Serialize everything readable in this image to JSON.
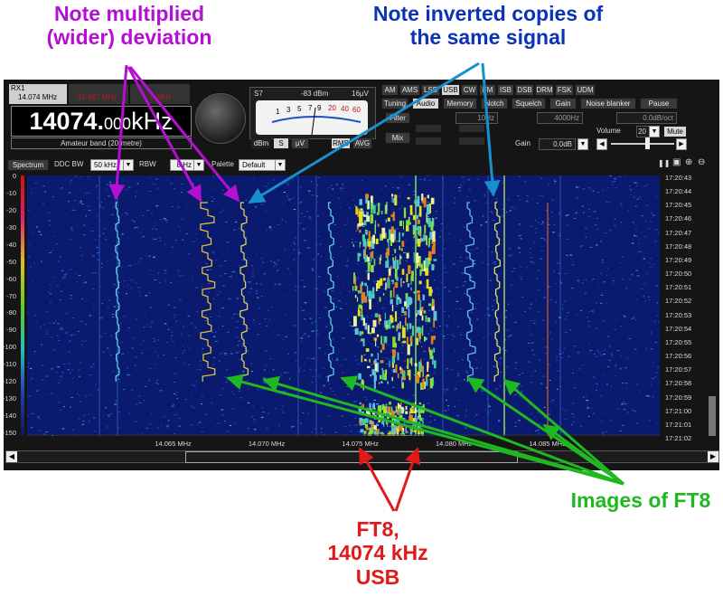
{
  "annotations": {
    "multiplied": [
      "Note multiplied",
      "(wider) deviation"
    ],
    "inverted": [
      "Note inverted copies of",
      "the same signal"
    ],
    "ft8": [
      "FT8,",
      "14074 kHz",
      "USB"
    ],
    "images": "Images of FT8",
    "colors": {
      "purple": "#b40fd2",
      "blue": "#0b33b8",
      "red": "#e01a1a",
      "green": "#20b820"
    }
  },
  "receiver": {
    "rx_tab": "RX1",
    "rx_freq_small": "14.074 MHz",
    "rx2_freq": "15.887 MHz",
    "rx3_freq": "...0 MHz",
    "frequency_main": "14074.",
    "frequency_fine": "000",
    "frequency_unit": "kHz",
    "band": "Amateur band (20-metre)"
  },
  "smeter": {
    "s_label": "S7",
    "dbm": "-83 dBm",
    "uv": "16μV",
    "scale": [
      "1",
      "3",
      "5",
      "7",
      "9",
      "20",
      "40",
      "60"
    ],
    "unit_buttons": [
      "dBm",
      "S",
      "μV"
    ],
    "mode_buttons": [
      "RMS",
      "AVG"
    ]
  },
  "modes": [
    "AM",
    "AMS",
    "LSB",
    "USB",
    "CW",
    "FM",
    "ISB",
    "DSB",
    "DRM",
    "FSK",
    "UDM"
  ],
  "active_mode": "USB",
  "tabs": [
    "Tuning",
    "Audio",
    "Memory",
    "Notch",
    "Squelch",
    "Gain",
    "Noise blanker",
    "Pause"
  ],
  "active_tab": "Audio",
  "audio": {
    "filter_label": "Filter",
    "mix_label": "Mix",
    "f1": "10Hz",
    "f2": "4000Hz",
    "f3": "0.0dB/oct",
    "volume_label": "Volume",
    "volume_value": "20",
    "mute": "Mute",
    "gain_label": "Gain",
    "gain_value": "0.0dB"
  },
  "spectrum_bar": {
    "spectrum_button": "Spectrum",
    "ddc_label": "DDC BW",
    "ddc_value": "50 kHz",
    "rbw_label": "RBW",
    "rbw_value": "8 Hz",
    "palette_label": "Palette",
    "palette_value": "Default"
  },
  "y_ticks": [
    "0",
    "-10",
    "-20",
    "-30",
    "-40",
    "-50",
    "-60",
    "-70",
    "-80",
    "-90",
    "-100",
    "-110",
    "-120",
    "-130",
    "-140",
    "-150"
  ],
  "time_ticks": [
    "17:20:43",
    "17:20:44",
    "17:20:45",
    "17:20:46",
    "17:20:47",
    "17:20:48",
    "17:20:49",
    "17:20:50",
    "17:20:51",
    "17:20:52",
    "17:20:53",
    "17:20:54",
    "17:20:55",
    "17:20:56",
    "17:20:57",
    "17:20:58",
    "17:20:59",
    "17:21:00",
    "17:21:01",
    "17:21:02"
  ],
  "x_ticks": [
    {
      "label": "14.065 MHz",
      "mhz": 14.065
    },
    {
      "label": "14.070 MHz",
      "mhz": 14.07
    },
    {
      "label": "14.075 MHz",
      "mhz": 14.075
    },
    {
      "label": "14.080 MHz",
      "mhz": 14.08
    },
    {
      "label": "14.085 MHz",
      "mhz": 14.085
    }
  ]
}
